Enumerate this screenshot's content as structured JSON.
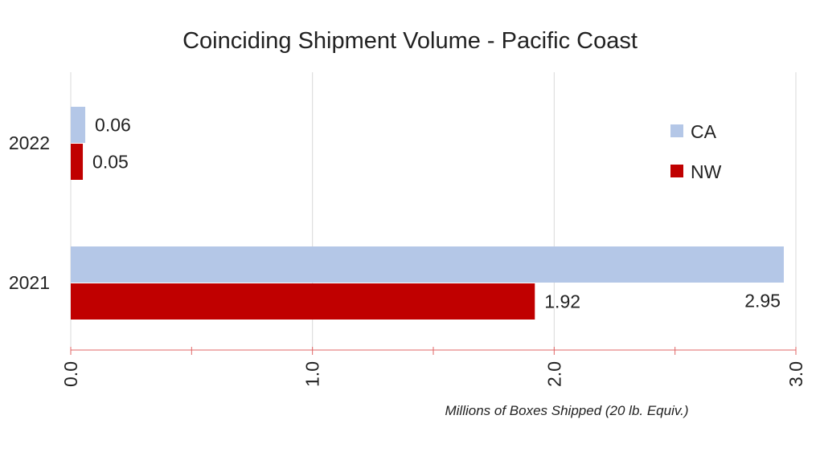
{
  "chart_data": {
    "type": "bar",
    "orientation": "horizontal",
    "title": "Coinciding Shipment Volume - Pacific Coast",
    "xlabel": "Millions of Boxes Shipped (20 lb. Equiv.)",
    "ylabel": "",
    "categories": [
      "2022",
      "2021"
    ],
    "series": [
      {
        "name": "CA",
        "color": "#b4c7e7",
        "values": [
          0.06,
          2.95
        ],
        "labels": [
          "0.06",
          "2.95"
        ]
      },
      {
        "name": "NW",
        "color": "#c00000",
        "values": [
          0.05,
          1.92
        ],
        "labels": [
          "0.05",
          "1.92"
        ]
      }
    ],
    "xlim": [
      0,
      3
    ],
    "xticks": [
      "0.0",
      "1.0",
      "2.0",
      "3.0"
    ],
    "grid": true,
    "legend_position": "right"
  }
}
